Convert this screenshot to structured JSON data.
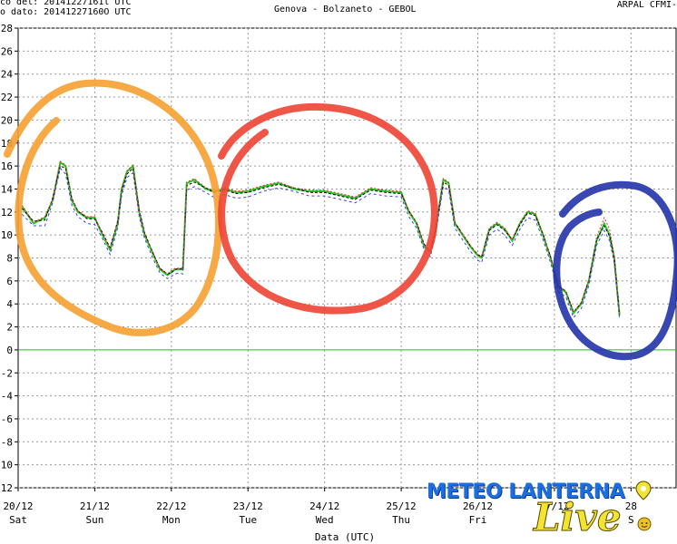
{
  "header": {
    "line1": "co del: 20141227161l UTC",
    "line2": "o dato: 20141227160O UTC",
    "title": "Genova - Bolzaneto - GEBOL",
    "right": "ARPAL CFMI-"
  },
  "logo": {
    "text": "METEO LANTERNA",
    "script": "Live",
    "pin_icon": "map-pin-icon",
    "sun_icon": "sun-face-icon"
  },
  "chart_data": {
    "type": "line",
    "xlabel": "Data (UTC)",
    "ylabel": "",
    "xlim": [
      0,
      8.6
    ],
    "ylim": [
      -12,
      28
    ],
    "yticks": [
      -12,
      -10,
      -8,
      -6,
      -4,
      -2,
      0,
      2,
      4,
      6,
      8,
      10,
      12,
      14,
      16,
      18,
      20,
      22,
      24,
      26,
      28
    ],
    "xticks": [
      {
        "x": 0,
        "date": "20/12",
        "day": "Sat"
      },
      {
        "x": 1,
        "date": "21/12",
        "day": "Sun"
      },
      {
        "x": 2,
        "date": "22/12",
        "day": "Mon"
      },
      {
        "x": 3,
        "date": "23/12",
        "day": "Tue"
      },
      {
        "x": 4,
        "date": "24/12",
        "day": "Wed"
      },
      {
        "x": 5,
        "date": "25/12",
        "day": "Thu"
      },
      {
        "x": 6,
        "date": "26/12",
        "day": "Fri"
      },
      {
        "x": 7,
        "date": "27/12",
        "day": ""
      },
      {
        "x": 8,
        "date": "28",
        "day": "S"
      }
    ],
    "grid": true,
    "colors": {
      "green": "#22cc22",
      "red": "#dd3333",
      "blue": "#3344ee",
      "black": "#000000",
      "zero": "#22bb22"
    },
    "series": [
      {
        "color": "green",
        "x": [
          0.05,
          0.2,
          0.35,
          0.45,
          0.55,
          0.62,
          0.7,
          0.78,
          0.9,
          1.0,
          1.1,
          1.2,
          1.3,
          1.35,
          1.42,
          1.5,
          1.58,
          1.65,
          1.75,
          1.85,
          1.95,
          2.0,
          2.05,
          2.1,
          2.15,
          2.2,
          2.3,
          2.45,
          2.55,
          2.7,
          2.85,
          3.0,
          3.2,
          3.4,
          3.6,
          3.8,
          4.0,
          4.2,
          4.4,
          4.6,
          4.8,
          5.0,
          5.1,
          5.2,
          5.3,
          5.38,
          5.45,
          5.55,
          5.62,
          5.7,
          5.8,
          5.9,
          6.0,
          6.05,
          6.15,
          6.25,
          6.35,
          6.45,
          6.55,
          6.65,
          6.75,
          6.85,
          6.95,
          7.05,
          7.15,
          7.25,
          7.35,
          7.45,
          7.55,
          7.65,
          7.72,
          7.78,
          7.85
        ],
        "y": [
          12.5,
          11,
          11.5,
          13,
          16.3,
          16,
          13,
          12,
          11.5,
          11.5,
          10,
          8.7,
          11,
          14,
          15.5,
          16,
          12,
          10,
          8.5,
          7,
          6.5,
          6.8,
          7,
          7,
          7,
          14.5,
          14.8,
          14,
          13.8,
          14,
          13.7,
          13.8,
          14.2,
          14.5,
          14,
          13.8,
          13.8,
          13.5,
          13.2,
          14,
          13.8,
          13.7,
          12,
          11,
          9,
          8.5,
          10.5,
          14.8,
          14.5,
          11,
          10,
          9,
          8.2,
          8,
          10.5,
          11,
          10.5,
          9.5,
          11,
          12,
          11.8,
          10,
          8,
          5.5,
          5,
          3.2,
          4,
          6,
          9.5,
          11,
          10,
          8,
          3
        ]
      },
      {
        "color": "black",
        "x": [
          0.05,
          0.2,
          0.35,
          0.45,
          0.55,
          0.62,
          0.7,
          0.78,
          0.9,
          1.0,
          1.1,
          1.2,
          1.3,
          1.35,
          1.42,
          1.5,
          1.58,
          1.65,
          1.75,
          1.85,
          1.95,
          2.0,
          2.05,
          2.1,
          2.15,
          2.2,
          2.3,
          2.45,
          2.55,
          2.7,
          2.85,
          3.0,
          3.2,
          3.4,
          3.6,
          3.8,
          4.0,
          4.2,
          4.4,
          4.6,
          4.8,
          5.0,
          5.1,
          5.2,
          5.3,
          5.38,
          5.45,
          5.55,
          5.62,
          5.7,
          5.8,
          5.9,
          6.0,
          6.05,
          6.15,
          6.25,
          6.35,
          6.45,
          6.55,
          6.65,
          6.75,
          6.85,
          6.95,
          7.05,
          7.15,
          7.25,
          7.35,
          7.45,
          7.55,
          7.65,
          7.72,
          7.78,
          7.85
        ],
        "y": [
          12.3,
          11.2,
          11.3,
          13.2,
          16,
          15.8,
          13.2,
          12.1,
          11.4,
          11.4,
          10.2,
          8.9,
          11.2,
          13.8,
          15.3,
          15.8,
          12.2,
          10.2,
          8.6,
          7.1,
          6.6,
          6.7,
          7,
          7.1,
          7,
          14.3,
          14.6,
          14.1,
          13.7,
          13.9,
          13.6,
          13.7,
          14.1,
          14.4,
          14.1,
          13.7,
          13.7,
          13.4,
          13.1,
          13.9,
          13.7,
          13.6,
          12.1,
          11.1,
          9.2,
          8.6,
          10.6,
          14.6,
          14.3,
          11.1,
          10.1,
          9.1,
          8.3,
          8.1,
          10.4,
          10.9,
          10.4,
          9.6,
          10.9,
          11.9,
          11.7,
          10.1,
          8.1,
          5.6,
          5.1,
          3.3,
          4.1,
          6.1,
          9.6,
          10.8,
          9.9,
          8.1,
          3.1
        ]
      },
      {
        "color": "blue",
        "x": [
          0.05,
          0.2,
          0.35,
          0.45,
          0.55,
          0.62,
          0.7,
          0.78,
          0.9,
          1.0,
          1.1,
          1.2,
          1.3,
          1.35,
          1.42,
          1.5,
          1.58,
          1.65,
          1.75,
          1.85,
          1.95,
          2.0,
          2.05,
          2.1,
          2.15,
          2.2,
          2.3,
          2.45,
          2.55,
          2.7,
          2.85,
          3.0,
          3.2,
          3.4,
          3.6,
          3.8,
          4.0,
          4.2,
          4.4,
          4.6,
          4.8,
          5.0,
          5.1,
          5.2,
          5.3,
          5.38,
          5.45,
          5.55,
          5.62,
          5.7,
          5.8,
          5.9,
          6.0,
          6.05,
          6.15,
          6.25,
          6.35,
          6.45,
          6.55,
          6.65,
          6.75,
          6.85,
          6.95,
          7.05,
          7.15,
          7.25,
          7.35,
          7.45,
          7.55,
          7.65,
          7.72,
          7.78,
          7.85
        ],
        "y": [
          11.8,
          10.8,
          10.8,
          12.8,
          15.8,
          15.3,
          12.6,
          11.6,
          11,
          10.9,
          9.7,
          8.3,
          10.6,
          13.4,
          15,
          15.4,
          11.6,
          9.7,
          8.1,
          6.7,
          6.2,
          6.4,
          6.6,
          6.7,
          6.6,
          13.9,
          14.2,
          13.7,
          13.3,
          13.5,
          13.2,
          13.3,
          13.8,
          14.1,
          13.8,
          13.4,
          13.4,
          13.1,
          12.8,
          13.6,
          13.4,
          13.3,
          11.6,
          10.6,
          8.7,
          8.1,
          10.1,
          14.2,
          13.9,
          10.6,
          9.6,
          8.6,
          7.8,
          7.6,
          10,
          10.5,
          10,
          9.1,
          10.5,
          11.5,
          11.3,
          9.6,
          7.6,
          5.1,
          4.6,
          2.8,
          3.6,
          5.6,
          9.1,
          10.4,
          9.5,
          7.6,
          2.6
        ]
      },
      {
        "color": "red",
        "x": [
          0.05,
          0.2,
          0.35,
          0.45,
          0.55,
          0.62,
          0.7,
          0.78,
          0.9,
          1.0,
          1.1,
          1.2,
          1.3,
          1.35,
          1.42,
          1.5,
          1.58,
          1.65,
          1.75,
          1.85,
          1.95,
          2.0,
          2.05,
          2.1,
          2.15,
          2.2,
          2.3,
          2.45,
          2.55,
          2.7,
          2.85,
          3.0,
          3.2,
          3.4,
          3.6,
          3.8,
          4.0,
          4.2,
          4.4,
          4.6,
          4.8,
          5.0,
          5.1,
          5.2,
          5.3,
          5.38,
          5.45,
          5.55,
          5.62,
          5.7,
          5.8,
          5.9,
          6.0,
          6.05,
          6.15,
          6.25,
          6.35,
          6.45,
          6.55,
          6.65,
          6.75,
          6.85,
          6.95,
          7.05,
          7.15,
          7.25,
          7.35,
          7.45,
          7.55,
          7.65,
          7.72,
          7.78,
          7.85
        ],
        "y": [
          12.6,
          11.1,
          11.6,
          13.1,
          16.4,
          16.1,
          13.1,
          12.1,
          11.6,
          11.6,
          10.1,
          8.8,
          11.1,
          14.1,
          15.6,
          16.1,
          12.1,
          10.1,
          8.6,
          7.1,
          6.6,
          6.9,
          7.1,
          7.1,
          7.1,
          14.6,
          14.9,
          14.1,
          13.9,
          14.1,
          13.8,
          13.9,
          14.3,
          14.6,
          14.1,
          13.9,
          13.9,
          13.6,
          13.3,
          14.1,
          13.9,
          13.8,
          12.1,
          11.1,
          9.1,
          8.6,
          10.6,
          14.9,
          14.6,
          11.1,
          10.1,
          9.1,
          8.3,
          8.1,
          10.6,
          11.1,
          10.6,
          9.6,
          11.1,
          12.1,
          11.9,
          10.1,
          8.1,
          5.6,
          5.1,
          3.3,
          4.1,
          6.1,
          9.8,
          11.5,
          10.5,
          8.2,
          3.1
        ]
      }
    ],
    "annotations": [
      {
        "shape": "circle",
        "color": "#f5a030",
        "name": "orange-annotation-circle"
      },
      {
        "shape": "circle",
        "color": "#ee4433",
        "name": "red-annotation-circle"
      },
      {
        "shape": "circle",
        "color": "#2233aa",
        "name": "blue-annotation-circle"
      }
    ]
  }
}
